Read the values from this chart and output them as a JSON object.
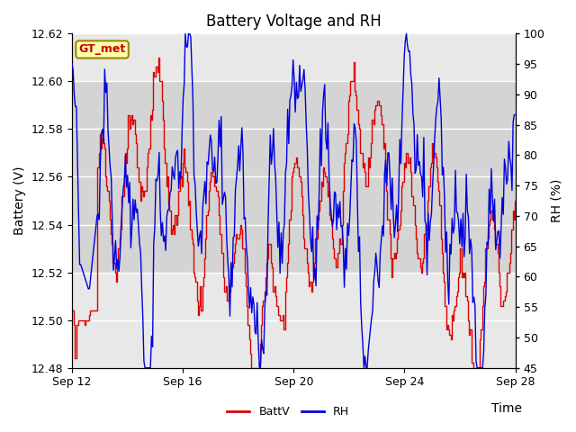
{
  "title": "Battery Voltage and RH",
  "xlabel": "Time",
  "ylabel_left": "Battery (V)",
  "ylabel_right": "RH (%)",
  "ylim_left": [
    12.48,
    12.62
  ],
  "ylim_right": [
    45,
    100
  ],
  "yticks_left": [
    12.48,
    12.5,
    12.52,
    12.54,
    12.56,
    12.58,
    12.6,
    12.62
  ],
  "yticks_right": [
    45,
    50,
    55,
    60,
    65,
    70,
    75,
    80,
    85,
    90,
    95,
    100
  ],
  "xtick_labels": [
    "Sep 12",
    "Sep 16",
    "Sep 20",
    "Sep 24",
    "Sep 28"
  ],
  "xtick_positions": [
    0,
    4,
    8,
    12,
    16
  ],
  "color_battv": "#dd0000",
  "color_rh": "#0000dd",
  "label_battv": "BattV",
  "label_rh": "RH",
  "legend_label": "GT_met",
  "plot_bg_color": "#e8e8e8",
  "band_color": "#d0d0d0",
  "grid_color": "#ffffff",
  "fig_bg_color": "#ffffff",
  "title_fontsize": 12,
  "axis_fontsize": 10,
  "tick_fontsize": 9,
  "figsize": [
    6.4,
    4.8
  ],
  "dpi": 100
}
